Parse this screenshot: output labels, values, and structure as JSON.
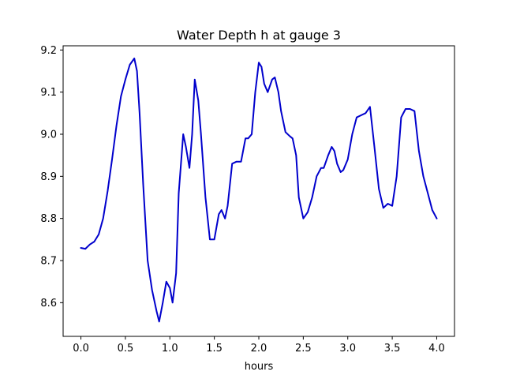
{
  "chart_data": {
    "type": "line",
    "title": "Water Depth h at gauge 3",
    "xlabel": "hours",
    "ylabel": "",
    "xlim": [
      -0.2,
      4.2
    ],
    "ylim": [
      8.52,
      9.21
    ],
    "xticks": [
      0.0,
      0.5,
      1.0,
      1.5,
      2.0,
      2.5,
      3.0,
      3.5,
      4.0
    ],
    "xtick_labels": [
      "0.0",
      "0.5",
      "1.0",
      "1.5",
      "2.0",
      "2.5",
      "3.0",
      "3.5",
      "4.0"
    ],
    "yticks": [
      8.6,
      8.7,
      8.8,
      8.9,
      9.0,
      9.1,
      9.2
    ],
    "ytick_labels": [
      "8.6",
      "8.7",
      "8.8",
      "8.9",
      "9.0",
      "9.1",
      "9.2"
    ],
    "grid": false,
    "legend": "none",
    "series": [
      {
        "color": "#0000cc",
        "x": [
          0.0,
          0.05,
          0.1,
          0.15,
          0.2,
          0.25,
          0.3,
          0.35,
          0.4,
          0.45,
          0.5,
          0.55,
          0.6,
          0.63,
          0.66,
          0.7,
          0.75,
          0.8,
          0.85,
          0.88,
          0.92,
          0.96,
          1.0,
          1.03,
          1.07,
          1.1,
          1.15,
          1.18,
          1.22,
          1.25,
          1.28,
          1.32,
          1.35,
          1.4,
          1.45,
          1.5,
          1.55,
          1.58,
          1.62,
          1.65,
          1.7,
          1.75,
          1.8,
          1.85,
          1.88,
          1.92,
          1.96,
          2.0,
          2.03,
          2.06,
          2.1,
          2.15,
          2.18,
          2.22,
          2.25,
          2.3,
          2.35,
          2.38,
          2.42,
          2.45,
          2.5,
          2.55,
          2.6,
          2.65,
          2.7,
          2.73,
          2.78,
          2.82,
          2.85,
          2.88,
          2.92,
          2.95,
          3.0,
          3.05,
          3.1,
          3.15,
          3.2,
          3.25,
          3.3,
          3.35,
          3.4,
          3.45,
          3.5,
          3.55,
          3.6,
          3.65,
          3.7,
          3.75,
          3.8,
          3.85,
          3.9,
          3.95,
          4.0
        ],
        "y": [
          8.73,
          8.728,
          8.738,
          8.745,
          8.762,
          8.8,
          8.865,
          8.94,
          9.02,
          9.09,
          9.13,
          9.165,
          9.18,
          9.15,
          9.05,
          8.88,
          8.7,
          8.63,
          8.58,
          8.555,
          8.6,
          8.65,
          8.635,
          8.6,
          8.67,
          8.86,
          9.0,
          8.97,
          8.92,
          9.0,
          9.13,
          9.08,
          9.0,
          8.85,
          8.75,
          8.75,
          8.81,
          8.82,
          8.8,
          8.83,
          8.93,
          8.935,
          8.935,
          8.99,
          8.99,
          9.0,
          9.1,
          9.17,
          9.16,
          9.12,
          9.1,
          9.13,
          9.135,
          9.1,
          9.055,
          9.005,
          8.995,
          8.99,
          8.95,
          8.85,
          8.8,
          8.815,
          8.85,
          8.9,
          8.92,
          8.92,
          8.95,
          8.97,
          8.96,
          8.93,
          8.91,
          8.915,
          8.94,
          9.0,
          9.04,
          9.045,
          9.05,
          9.065,
          8.97,
          8.87,
          8.825,
          8.835,
          8.83,
          8.9,
          9.04,
          9.06,
          9.06,
          9.055,
          8.96,
          8.9,
          8.86,
          8.82,
          8.8
        ]
      }
    ]
  }
}
